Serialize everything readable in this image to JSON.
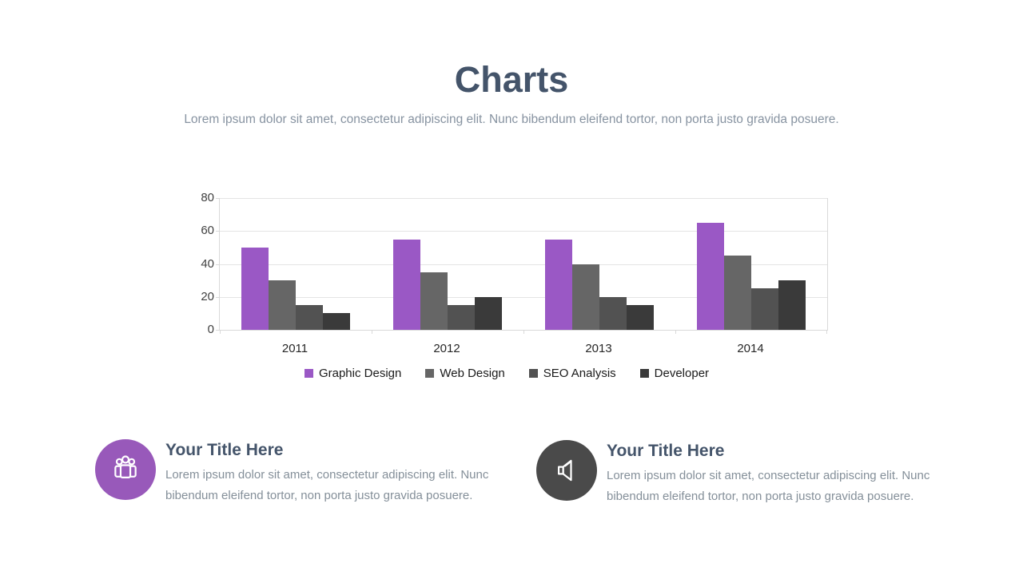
{
  "slide": {
    "title": "Charts",
    "subtitle": "Lorem ipsum dolor sit amet, consectetur adipiscing elit. Nunc bibendum eleifend tortor, non porta justo gravida posuere."
  },
  "chart_data": {
    "type": "bar",
    "title": "",
    "categories": [
      "2011",
      "2012",
      "2013",
      "2014"
    ],
    "series": [
      {
        "name": "Graphic Design",
        "color": "#9a58c5",
        "values": [
          50,
          55,
          55,
          65
        ]
      },
      {
        "name": "Web Design",
        "color": "#666666",
        "values": [
          30,
          35,
          40,
          45
        ]
      },
      {
        "name": "SEO Analysis",
        "color": "#525252",
        "values": [
          15,
          15,
          20,
          25
        ]
      },
      {
        "name": "Developer",
        "color": "#3a3a3a",
        "values": [
          10,
          20,
          15,
          30
        ]
      }
    ],
    "xlabel": "",
    "ylabel": "",
    "ylim": [
      0,
      80
    ],
    "yticks": [
      0,
      20,
      40,
      60,
      80
    ],
    "grid": true,
    "legend_position": "bottom"
  },
  "features": [
    {
      "icon": "people-group-icon",
      "icon_bg": "#9859ba",
      "title": "Your Title Here",
      "body": "Lorem ipsum dolor sit amet, consectetur adipiscing elit. Nunc bibendum eleifend tortor, non porta justo gravida posuere."
    },
    {
      "icon": "speaker-icon",
      "icon_bg": "#4a4a4a",
      "title": "Your Title Here",
      "body": "Lorem ipsum dolor sit amet, consectetur adipiscing elit. Nunc bibendum eleifend tortor, non porta justo gravida posuere."
    }
  ]
}
